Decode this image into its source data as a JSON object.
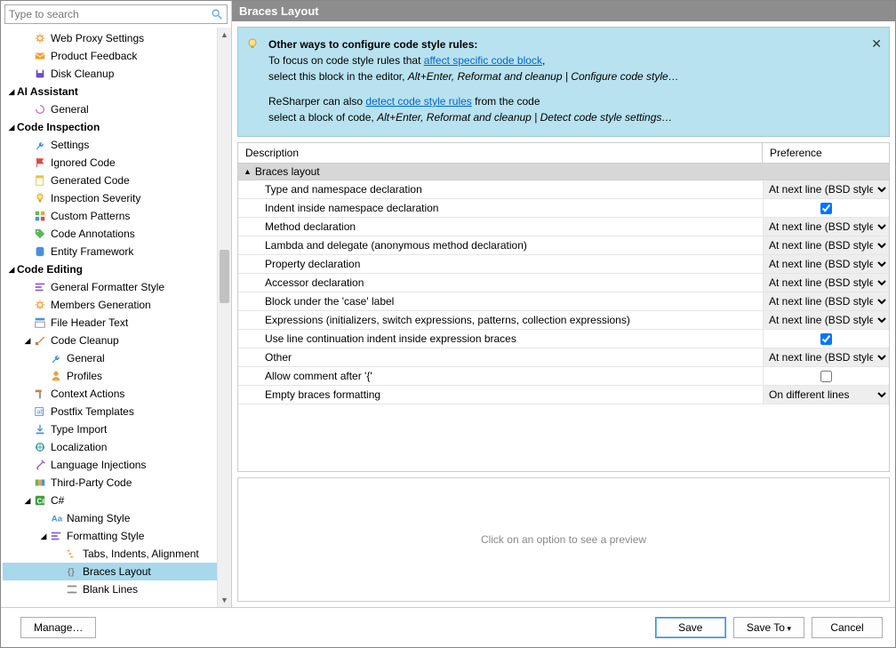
{
  "search": {
    "placeholder": "Type to search"
  },
  "panel_title": "Braces Layout",
  "info": {
    "title": "Other ways to configure code style rules:",
    "line1a": "To focus on code style rules that ",
    "link1": "affect specific code block",
    "line1b": ",",
    "line2a": "select this block in the editor, ",
    "line2_em": "Alt+Enter, Reformat and cleanup | Configure code style…",
    "line3a": "ReSharper can also ",
    "link2": "detect code style rules",
    "line3b": " from the code",
    "line4a": "select a block of code, ",
    "line4_em": "Alt+Enter, Reformat and cleanup | Detect code style settings…"
  },
  "table": {
    "col_desc": "Description",
    "col_pref": "Preference",
    "group": "Braces layout",
    "option_bsd": "At next line (BSD style)",
    "option_diff_lines": "On different lines",
    "rows": [
      {
        "desc": "Type and namespace declaration",
        "type": "select",
        "value": "At next line (BSD style)"
      },
      {
        "desc": "Indent inside namespace declaration",
        "type": "check",
        "checked": true
      },
      {
        "desc": "Method declaration",
        "type": "select",
        "value": "At next line (BSD style)"
      },
      {
        "desc": "Lambda and delegate (anonymous method declaration)",
        "type": "select",
        "value": "At next line (BSD style)"
      },
      {
        "desc": "Property declaration",
        "type": "select",
        "value": "At next line (BSD style)"
      },
      {
        "desc": "Accessor declaration",
        "type": "select",
        "value": "At next line (BSD style)"
      },
      {
        "desc": "Block under the 'case' label",
        "type": "select",
        "value": "At next line (BSD style)"
      },
      {
        "desc": "Expressions (initializers, switch expressions, patterns, collection expressions)",
        "type": "select",
        "value": "At next line (BSD style)"
      },
      {
        "desc": "Use line continuation indent inside expression braces",
        "type": "check",
        "checked": true
      },
      {
        "desc": "Other",
        "type": "select",
        "value": "At next line (BSD style)"
      },
      {
        "desc": "Allow comment after '{'",
        "type": "check",
        "checked": false
      },
      {
        "desc": "Empty braces formatting",
        "type": "select",
        "value": "On different lines"
      }
    ]
  },
  "preview_text": "Click on an option to see a preview",
  "buttons": {
    "manage": "Manage…",
    "save": "Save",
    "save_to": "Save To",
    "cancel": "Cancel"
  },
  "icon_colors": {
    "gear_orange": "#e8a33d",
    "envelope": "#f0a030",
    "disk": "#6a4fbf",
    "swirl": "#b86fd6",
    "wrench_blue": "#4a90d9",
    "lamp": "#e8b030",
    "code_green": "#5cb85c",
    "file_yellow": "#e8c040",
    "tag": "#5cb85c",
    "brush": "#c97f3a",
    "csharp": "#3a9e3a",
    "purple": "#8a5fd0",
    "teal": "#3aa0a0",
    "braces": "#888"
  },
  "tree": [
    {
      "indent": 1,
      "icon": "gear",
      "label": "Web Proxy Settings"
    },
    {
      "indent": 1,
      "icon": "envelope",
      "label": "Product Feedback"
    },
    {
      "indent": 1,
      "icon": "disk",
      "label": "Disk Cleanup"
    },
    {
      "indent": 0,
      "caret": true,
      "bold": true,
      "label": "AI Assistant"
    },
    {
      "indent": 1,
      "icon": "swirl",
      "label": "General"
    },
    {
      "indent": 0,
      "caret": true,
      "bold": true,
      "label": "Code Inspection"
    },
    {
      "indent": 1,
      "icon": "wrench",
      "label": "Settings"
    },
    {
      "indent": 1,
      "icon": "flag",
      "label": "Ignored Code"
    },
    {
      "indent": 1,
      "icon": "file",
      "label": "Generated Code"
    },
    {
      "indent": 1,
      "icon": "lamp",
      "label": "Inspection Severity"
    },
    {
      "indent": 1,
      "icon": "pattern",
      "label": "Custom Patterns"
    },
    {
      "indent": 1,
      "icon": "tag",
      "label": "Code Annotations"
    },
    {
      "indent": 1,
      "icon": "db",
      "label": "Entity Framework"
    },
    {
      "indent": 0,
      "caret": true,
      "bold": true,
      "label": "Code Editing"
    },
    {
      "indent": 1,
      "icon": "formatter",
      "label": "General Formatter Style"
    },
    {
      "indent": 1,
      "icon": "gear",
      "label": "Members Generation"
    },
    {
      "indent": 1,
      "icon": "header",
      "label": "File Header Text"
    },
    {
      "indent": 1,
      "caret": true,
      "icon": "brush",
      "label": "Code Cleanup"
    },
    {
      "indent": 2,
      "icon": "wrench",
      "label": "General"
    },
    {
      "indent": 2,
      "icon": "profile",
      "label": "Profiles"
    },
    {
      "indent": 1,
      "icon": "hammer",
      "label": "Context Actions"
    },
    {
      "indent": 1,
      "icon": "postfix",
      "label": "Postfix Templates"
    },
    {
      "indent": 1,
      "icon": "import",
      "label": "Type Import"
    },
    {
      "indent": 1,
      "icon": "globe",
      "label": "Localization"
    },
    {
      "indent": 1,
      "icon": "inject",
      "label": "Language Injections"
    },
    {
      "indent": 1,
      "icon": "third",
      "label": "Third-Party Code"
    },
    {
      "indent": 1,
      "caret": true,
      "icon": "csharp",
      "label": "C#"
    },
    {
      "indent": 2,
      "icon": "naming",
      "label": "Naming Style"
    },
    {
      "indent": 2,
      "caret": true,
      "icon": "formatter",
      "label": "Formatting Style"
    },
    {
      "indent": 3,
      "icon": "tabs",
      "label": "Tabs, Indents, Alignment"
    },
    {
      "indent": 3,
      "icon": "braces",
      "label": "Braces Layout",
      "selected": true
    },
    {
      "indent": 3,
      "icon": "blank",
      "label": "Blank Lines"
    }
  ]
}
